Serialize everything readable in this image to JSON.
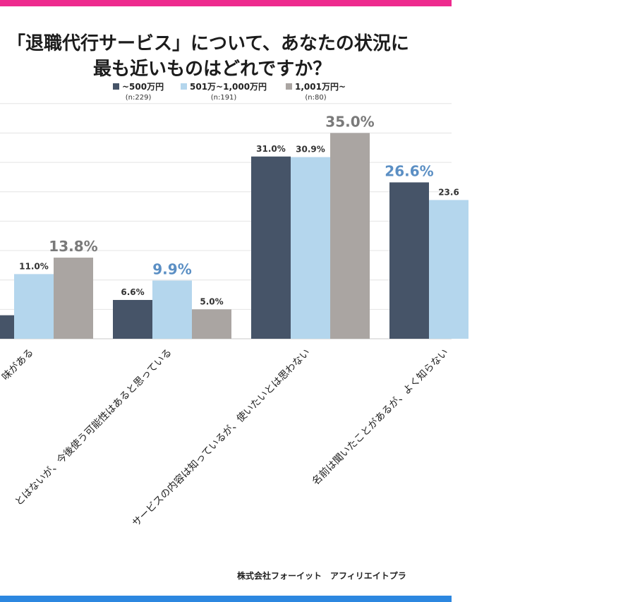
{
  "title": {
    "line1": "「退職代行サービス」について、あなたの状況に",
    "line2": "最も近いものはどれですか？"
  },
  "legend": [
    {
      "label": "~500万円",
      "n": "(n:229)"
    },
    {
      "label": "501万~1,000万円",
      "n": "(n:191)"
    },
    {
      "label": "1,001万円~",
      "n": "(n:80)"
    }
  ],
  "colors": {
    "series1": "#465468",
    "series2": "#b4d6ed",
    "series3": "#aaa5a2",
    "highlight_blue": "#5b8fc4",
    "highlight_gray": "#7a7a7a",
    "top_bar": "#ee2a8e",
    "bottom_bar": "#2c87e0"
  },
  "chart_data": {
    "type": "bar",
    "title": "「退職代行サービス」について、あなたの状況に最も近いものはどれですか？",
    "categories": [
      "味がある",
      "とはないが、今後使う可能性はあると思っている",
      "サービスの内容は知っているが、使いたいとは思わない",
      "名前は聞いたことがあるが、よく知らない"
    ],
    "series": [
      {
        "name": "~500万円",
        "values": [
          null,
          6.6,
          31.0,
          26.6
        ],
        "labels": [
          "%",
          "6.6%",
          "31.0%",
          "26.6%"
        ]
      },
      {
        "name": "501万~1,000万円",
        "values": [
          11.0,
          9.9,
          30.9,
          23.6
        ],
        "labels": [
          "11.0%",
          "9.9%",
          "30.9%",
          "23.6"
        ]
      },
      {
        "name": "1,001万円~",
        "values": [
          13.8,
          5.0,
          35.0,
          null
        ],
        "labels": [
          "13.8%",
          "5.0%",
          "35.0%",
          ""
        ]
      }
    ],
    "highlights": [
      {
        "category": 0,
        "series": 2
      },
      {
        "category": 1,
        "series": 1
      },
      {
        "category": 2,
        "series": 2
      },
      {
        "category": 3,
        "series": 0
      }
    ],
    "first_bar_value_estimate": 4.0,
    "ylim": [
      0,
      40
    ],
    "grid": true,
    "xlabel": "",
    "ylabel": ""
  },
  "footer": "株式会社フォーイット　アフィリエイトプラ"
}
